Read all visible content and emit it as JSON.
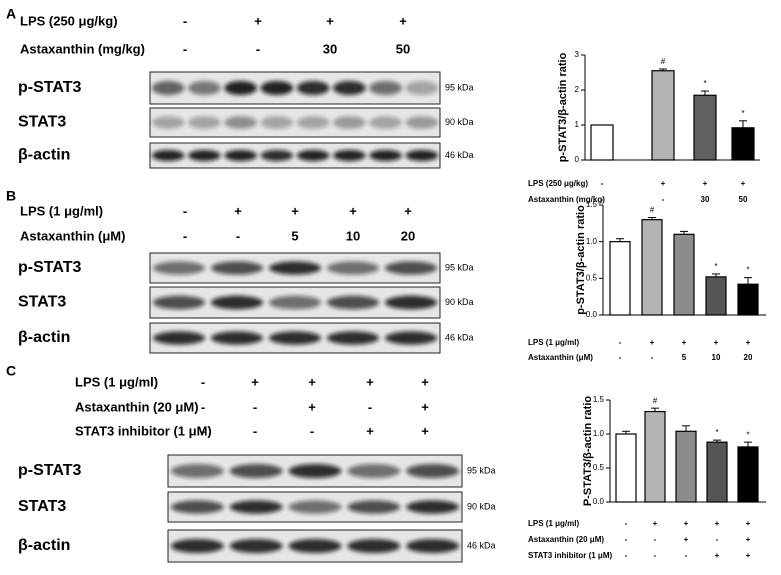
{
  "panels": [
    {
      "label": "A",
      "conditions": [
        {
          "name": "LPS (250 μg/kg)",
          "marks": [
            "-",
            "+",
            "+",
            "+"
          ]
        },
        {
          "name": "Astaxanthin (mg/kg)",
          "marks": [
            "-",
            "-",
            "30",
            "50"
          ]
        }
      ],
      "bands": [
        {
          "name": "p-STAT3",
          "size": "95 kDa"
        },
        {
          "name": "STAT3",
          "size": "90 kDa"
        },
        {
          "name": "β-actin",
          "size": "46 kDa"
        }
      ]
    },
    {
      "label": "B",
      "conditions": [
        {
          "name": "LPS (1 μg/ml)",
          "marks": [
            "-",
            "+",
            "+",
            "+",
            "+"
          ]
        },
        {
          "name": "Astaxanthin (μM)",
          "marks": [
            "-",
            "-",
            "5",
            "10",
            "20"
          ]
        }
      ],
      "bands": [
        {
          "name": "p-STAT3",
          "size": "95 kDa"
        },
        {
          "name": "STAT3",
          "size": "90 kDa"
        },
        {
          "name": "β-actin",
          "size": "46 kDa"
        }
      ]
    },
    {
      "label": "C",
      "conditions": [
        {
          "name": "LPS (1 μg/ml)",
          "marks": [
            "-",
            "+",
            "+",
            "+",
            "+"
          ]
        },
        {
          "name": "Astaxanthin (20 μM)",
          "marks": [
            "-",
            "-",
            "+",
            "-",
            "+"
          ]
        },
        {
          "name": "STAT3 inhibitor (1 μM)",
          "marks": [
            "-",
            "-",
            "-",
            "+",
            "+"
          ]
        }
      ],
      "bands": [
        {
          "name": "p-STAT3",
          "size": "95 kDa"
        },
        {
          "name": "STAT3",
          "size": "90 kDa"
        },
        {
          "name": "β-actin",
          "size": "46 kDa"
        }
      ]
    }
  ],
  "chart_data": [
    {
      "type": "bar",
      "ylabel": "p-STAT3/β-actin ratio",
      "categories": [
        null,
        null,
        null,
        null
      ],
      "values": [
        1.0,
        2.55,
        1.85,
        0.92
      ],
      "errors": [
        0,
        0.05,
        0.12,
        0.2
      ],
      "annotations": [
        null,
        "#",
        "*",
        "*"
      ],
      "colors": [
        "#ffffff",
        "#b4b4b4",
        "#606060",
        "#000000"
      ],
      "ylim": [
        0,
        3
      ],
      "yticks": [
        0,
        1,
        2,
        3
      ],
      "conditions": [
        {
          "name": "LPS (250 μg/kg)",
          "labels": [
            "-",
            "+",
            "+",
            "+"
          ]
        },
        {
          "name": "Astaxanthin (mg/kg)",
          "labels": [
            "-",
            "-",
            "30",
            "50"
          ]
        }
      ]
    },
    {
      "type": "bar",
      "ylabel": "p-STAT3/β-actin ratio",
      "categories": [
        null,
        null,
        null,
        null,
        null
      ],
      "values": [
        1.0,
        1.3,
        1.1,
        0.52,
        0.42
      ],
      "errors": [
        0.04,
        0.03,
        0.04,
        0.04,
        0.09
      ],
      "annotations": [
        null,
        "#",
        null,
        "*",
        "*"
      ],
      "colors": [
        "#ffffff",
        "#b4b4b4",
        "#8c8c8c",
        "#555555",
        "#000000"
      ],
      "ylim": [
        0,
        1.5
      ],
      "yticks": [
        {
          "value": 0,
          "label": "0.0"
        },
        {
          "value": 0.5,
          "label": "0.5"
        },
        {
          "value": 1,
          "label": "1.0"
        },
        {
          "value": 1.5,
          "label": "1.5"
        }
      ],
      "conditions": [
        {
          "name": "LPS (1 μg/ml)",
          "labels": [
            "-",
            "+",
            "+",
            "+",
            "+"
          ]
        },
        {
          "name": "Astaxanthin (μM)",
          "labels": [
            "-",
            "-",
            "5",
            "10",
            "20"
          ]
        }
      ]
    },
    {
      "type": "bar",
      "ylabel": "P-STAT3/β-actin ratio",
      "categories": [
        null,
        null,
        null,
        null,
        null
      ],
      "values": [
        1.0,
        1.33,
        1.04,
        0.88,
        0.81
      ],
      "errors": [
        0.04,
        0.05,
        0.08,
        0.03,
        0.07
      ],
      "annotations": [
        null,
        "#",
        null,
        "*",
        "*"
      ],
      "colors": [
        "#ffffff",
        "#b4b4b4",
        "#8c8c8c",
        "#555555",
        "#000000"
      ],
      "ylim": [
        0,
        1.5
      ],
      "yticks": [
        {
          "value": 0,
          "label": "0.0"
        },
        {
          "value": 0.5,
          "label": "0.5"
        },
        {
          "value": 1,
          "label": "1.0"
        },
        {
          "value": 1.5,
          "label": "1.5"
        }
      ],
      "conditions": [
        {
          "name": "LPS (1 μg/ml)",
          "labels": [
            "-",
            "+",
            "+",
            "+",
            "+"
          ]
        },
        {
          "name": "Astaxanthin (20 μM)",
          "labels": [
            "-",
            "-",
            "+",
            "-",
            "+"
          ]
        },
        {
          "name": "STAT3 inhibitor (1 μM)",
          "labels": [
            "-",
            "-",
            "-",
            "+",
            "+"
          ]
        }
      ]
    }
  ]
}
